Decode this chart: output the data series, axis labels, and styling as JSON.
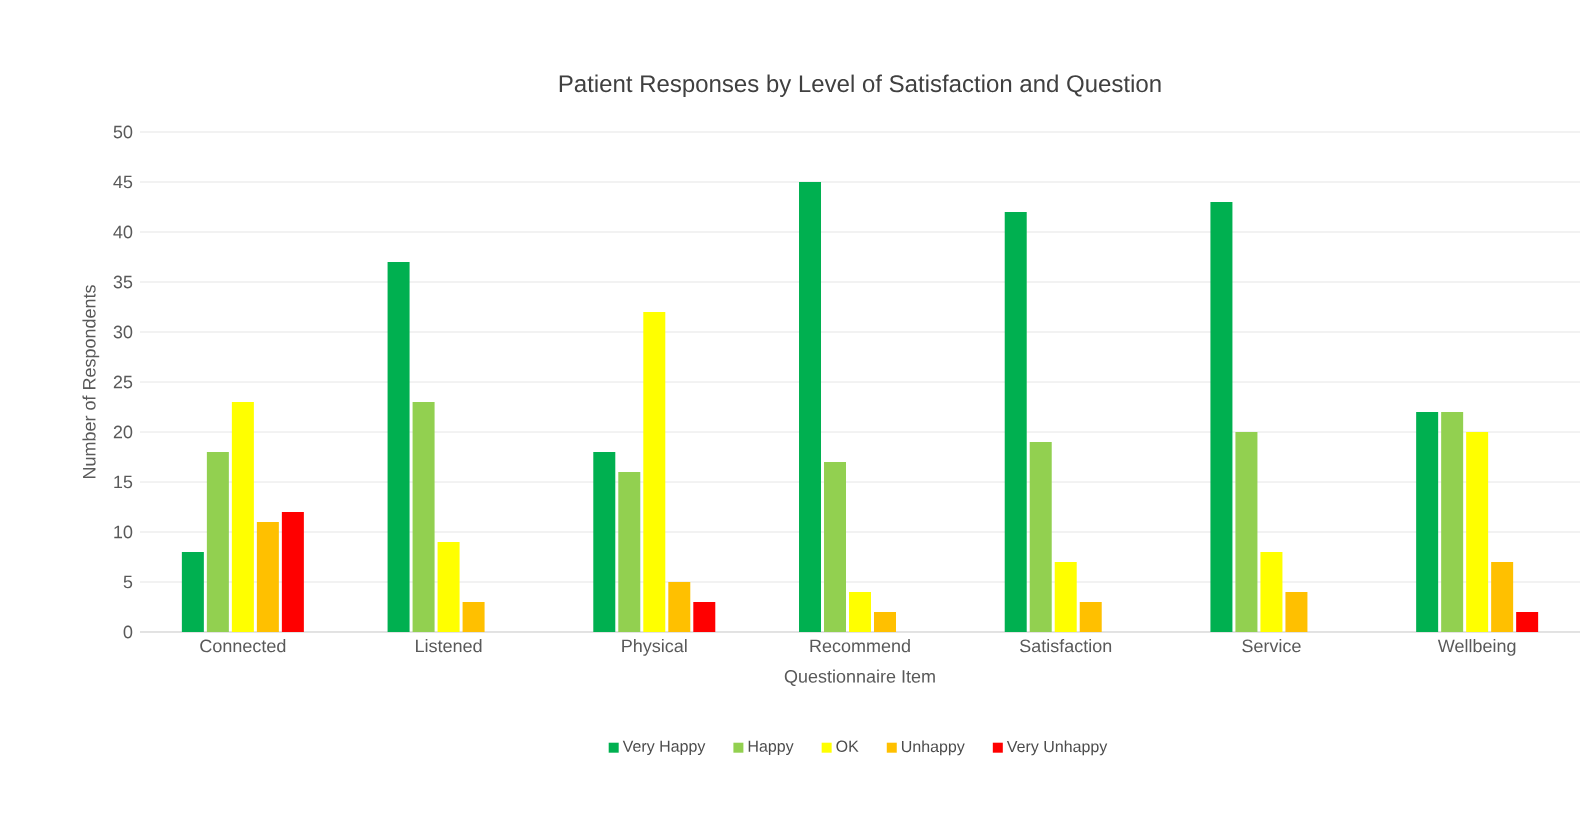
{
  "chart_data": {
    "type": "bar",
    "title": "Patient Responses by Level of Satisfaction and Question",
    "xlabel": "Questionnaire Item",
    "ylabel": "Number of Respondents",
    "categories": [
      "Connected",
      "Listened",
      "Physical",
      "Recommend",
      "Satisfaction",
      "Service",
      "Wellbeing"
    ],
    "series": [
      {
        "name": "Very Happy",
        "color": "#00b050",
        "values": [
          8,
          37,
          18,
          45,
          42,
          43,
          22
        ]
      },
      {
        "name": "Happy",
        "color": "#92d050",
        "values": [
          18,
          23,
          16,
          17,
          19,
          20,
          22
        ]
      },
      {
        "name": "OK",
        "color": "#ffff00",
        "values": [
          23,
          9,
          32,
          4,
          7,
          8,
          20
        ]
      },
      {
        "name": "Unhappy",
        "color": "#ffc000",
        "values": [
          11,
          3,
          5,
          2,
          3,
          4,
          7
        ]
      },
      {
        "name": "Very Unhappy",
        "color": "#ff0000",
        "values": [
          12,
          0,
          3,
          0,
          0,
          0,
          2
        ]
      }
    ],
    "ylim": [
      0,
      50
    ],
    "yticks": [
      0,
      5,
      10,
      15,
      20,
      25,
      30,
      35,
      40,
      45,
      50
    ],
    "grid": "y",
    "legend": "bottom"
  }
}
